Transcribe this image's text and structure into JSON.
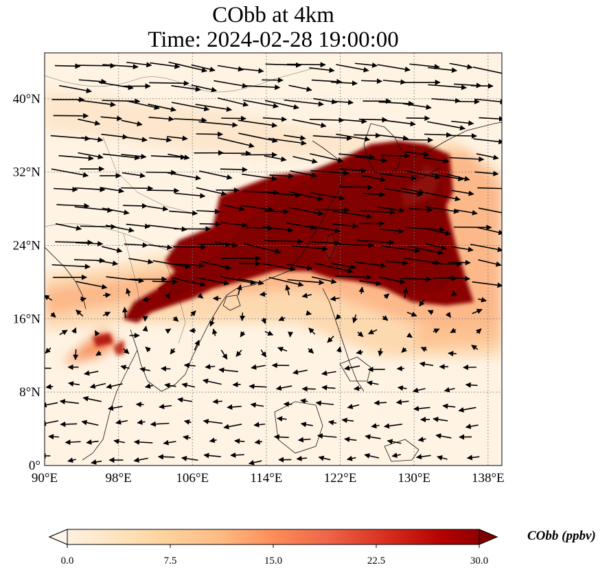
{
  "title": {
    "line1": "CObb at 4km",
    "line2": "Time: 2024-02-28 19:00:00"
  },
  "map": {
    "lon_range": [
      90,
      139.5
    ],
    "lat_range": [
      0,
      45
    ],
    "lon_ticks": [
      {
        "value": 90,
        "label": "90°E"
      },
      {
        "value": 98,
        "label": "98°E"
      },
      {
        "value": 106,
        "label": "106°E"
      },
      {
        "value": 114,
        "label": "114°E"
      },
      {
        "value": 122,
        "label": "122°E"
      },
      {
        "value": 130,
        "label": "130°E"
      },
      {
        "value": 138,
        "label": "138°E"
      }
    ],
    "lat_ticks": [
      {
        "value": 0,
        "label": "0°"
      },
      {
        "value": 8,
        "label": "8°N"
      },
      {
        "value": 16,
        "label": "16°N"
      },
      {
        "value": 24,
        "label": "24°N"
      },
      {
        "value": 32,
        "label": "32°N"
      },
      {
        "value": 40,
        "label": "40°N"
      }
    ],
    "gridlines": true,
    "gridline_style": "dotted"
  },
  "colorbar": {
    "label": "CObb (ppbv)",
    "min": 0.0,
    "max": 30.0,
    "extend": "both",
    "ticks": [
      "0.0",
      "7.5",
      "15.0",
      "22.5",
      "30.0"
    ],
    "colors": [
      "#fff5eb",
      "#fee6ce",
      "#fdd0a2",
      "#fdae6b",
      "#fd8d3c",
      "#f16913",
      "#d94801",
      "#a63603",
      "#7f0000"
    ],
    "colormap": "OrRd"
  },
  "plume": {
    "description_values_ppbv": {
      "core": 30.0,
      "edge": 12.0,
      "background": 1.0
    }
  },
  "wind_vectors": {
    "upper_region_direction": "east-southeast",
    "lower_region_direction": "west"
  }
}
